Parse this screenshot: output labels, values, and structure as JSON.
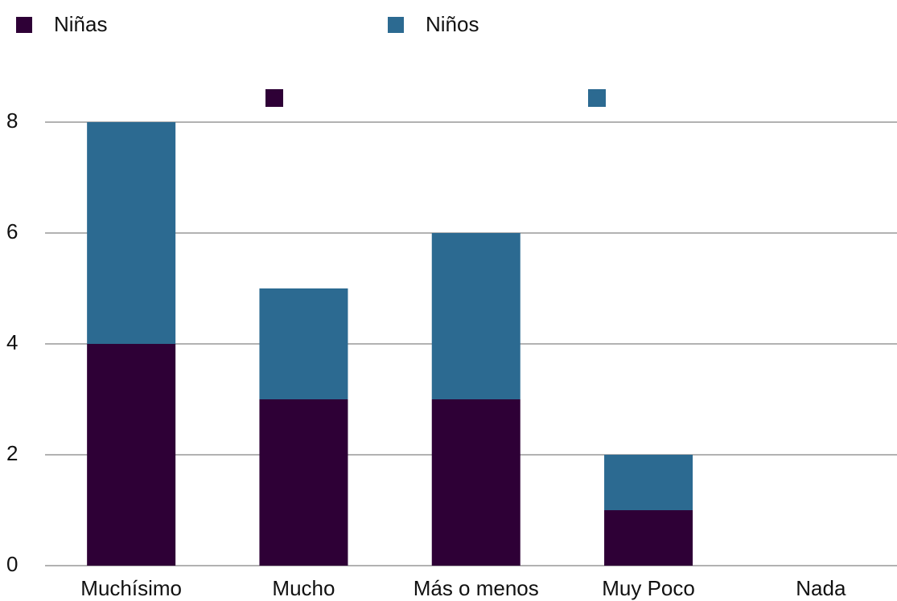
{
  "chart_data": {
    "type": "bar",
    "stacked": true,
    "categories": [
      "Muchísimo",
      "Mucho",
      "Más o menos",
      "Muy Poco",
      "Nada"
    ],
    "series": [
      {
        "name": "Niñas",
        "color": "#2e0036",
        "values": [
          4,
          3,
          3,
          1,
          0
        ]
      },
      {
        "name": "Niños",
        "color": "#2c6a91",
        "values": [
          4,
          2,
          3,
          1,
          0
        ]
      }
    ],
    "ylim": [
      0,
      8
    ],
    "yticks": [
      0,
      2,
      4,
      6,
      8
    ],
    "grid": true,
    "legend": "top"
  }
}
